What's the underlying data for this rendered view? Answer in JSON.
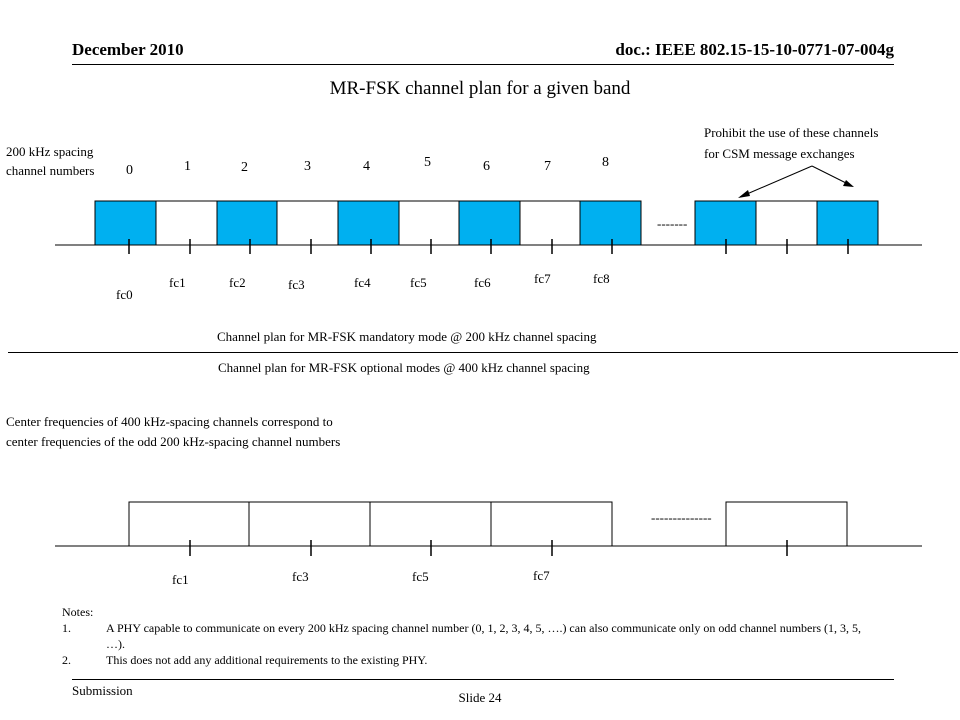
{
  "header": {
    "date": "December 2010",
    "doc_id": "doc.: IEEE 802.15-15-10-0771-07-004g"
  },
  "title": "MR-FSK channel plan for a given band",
  "top_section": {
    "spacing_label_line1": "200 kHz spacing",
    "spacing_label_line2": "channel numbers",
    "channel_numbers": [
      "0",
      "1",
      "2",
      "3",
      "4",
      "5",
      "6",
      "7",
      "8"
    ],
    "frequency_labels": [
      "fc0",
      "fc1",
      "fc2",
      "fc3",
      "fc4",
      "fc5",
      "fc6",
      "fc7",
      "fc8"
    ],
    "ellipsis": "-------",
    "prohibit_note_line1": "Prohibit the use of these channels",
    "prohibit_note_line2": "for CSM message exchanges",
    "caption": "Channel plan for MR-FSK mandatory mode @ 200 kHz channel spacing",
    "blue_color": "#00B0F0"
  },
  "bottom_section": {
    "caption": "Channel plan for MR-FSK optional modes @ 400 kHz channel spacing",
    "description_line1": "Center frequencies of 400 kHz-spacing channels correspond to",
    "description_line2": "center frequencies of the odd 200 kHz-spacing channel numbers",
    "frequency_labels": [
      "fc1",
      "fc3",
      "fc5",
      "fc7"
    ],
    "ellipsis": "--------------"
  },
  "notes": {
    "heading": "Notes:",
    "items": [
      {
        "num": "1.",
        "text": "A PHY capable to communicate on every 200 kHz spacing channel number (0, 1, 2, 3, 4, 5, ….) can also communicate only on odd channel numbers (1, 3, 5, …)."
      },
      {
        "num": "2.",
        "text": "This does not add any additional requirements to the existing PHY."
      }
    ]
  },
  "footer": {
    "submission": "Submission",
    "slide": "Slide 24"
  }
}
